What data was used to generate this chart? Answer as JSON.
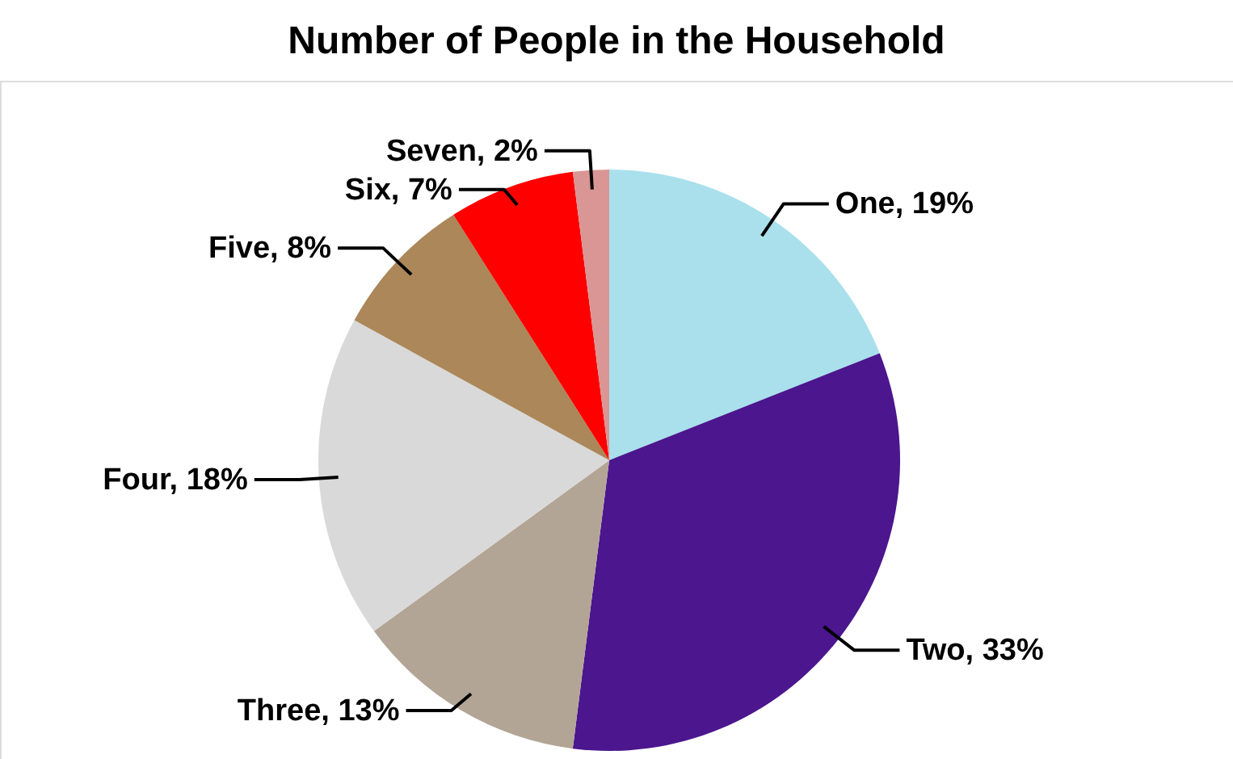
{
  "chart_data": {
    "type": "pie",
    "title": "Number of People in the Household",
    "categories": [
      "One",
      "Two",
      "Three",
      "Four",
      "Five",
      "Six",
      "Seven"
    ],
    "values": [
      19,
      33,
      13,
      18,
      8,
      7,
      2
    ],
    "colors": [
      "#a9e0ec",
      "#4b168e",
      "#b3a595",
      "#d9d9d9",
      "#ab8759",
      "#ff0000",
      "#d99694"
    ],
    "value_labels": [
      "19%",
      "33%",
      "13%",
      "18%",
      "8%",
      "7%",
      "2%"
    ]
  }
}
